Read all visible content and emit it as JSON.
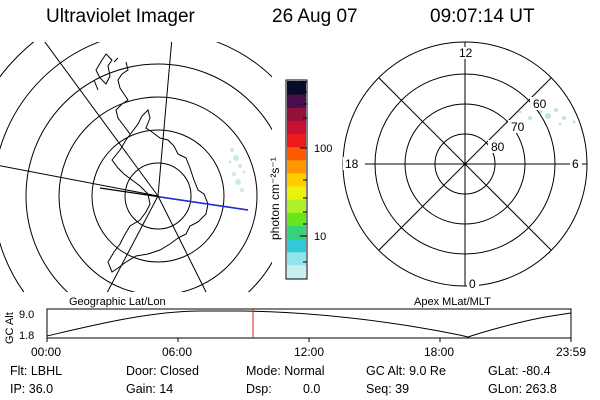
{
  "header": {
    "title": "Ultraviolet Imager",
    "date": "26 Aug 07",
    "time": "09:07:14 UT"
  },
  "geographic_map": {
    "label": "Geographic Lat/Lon",
    "track_colors": [
      "#000000",
      "#1a2cd6"
    ]
  },
  "colorbar": {
    "unit": "photon cm⁻²s⁻¹",
    "tick_labels": [
      "100",
      "10"
    ],
    "colors": [
      "#c9eef2",
      "#8ee6ec",
      "#33c8d8",
      "#34d37a",
      "#66e61c",
      "#aef02a",
      "#e8f20c",
      "#ffce00",
      "#ff9800",
      "#ff5a00",
      "#ec1a1a",
      "#c81032",
      "#92103a",
      "#4a0e4a",
      "#0a0a2a"
    ]
  },
  "apex_map": {
    "label": "Apex MLat/MLT",
    "mlt_labels": {
      "top": "12",
      "left": "18",
      "right": "6",
      "bottom": "0"
    },
    "mlat_labels": [
      "60",
      "70",
      "80"
    ]
  },
  "altitude_plot": {
    "ylabel": "GC Alt",
    "ytick_labels": [
      "9.0",
      "1.8"
    ],
    "xtick_labels": [
      "00:00",
      "06:00",
      "12:00",
      "18:00",
      "23:59"
    ],
    "marker_color": "#d42020"
  },
  "info": {
    "filter": "Flt: LBHL",
    "ip": "IP: 36.0",
    "door": "Door: Closed",
    "gain": "Gain: 14",
    "mode": "Mode: Normal",
    "dsp_label": "Dsp:",
    "dsp_value": "0.0",
    "gc_alt": "GC Alt: 9.0 Re",
    "seq": "Seq: 39",
    "glat": "GLat: -80.4",
    "glon": "GLon: 263.8"
  }
}
